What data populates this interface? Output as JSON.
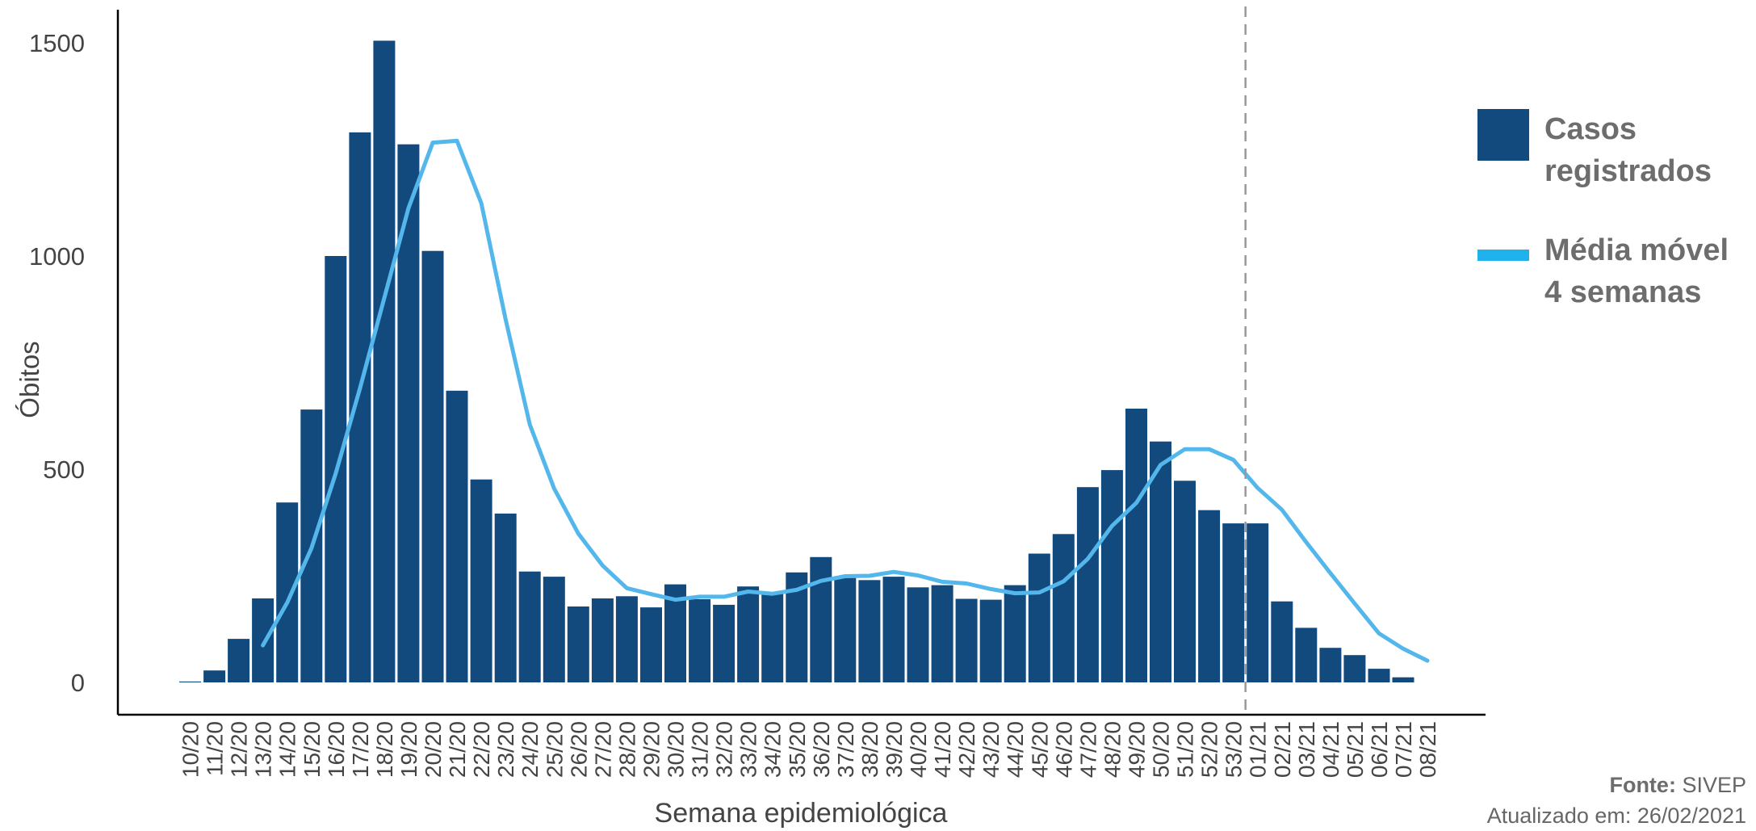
{
  "chart_data": {
    "type": "bar",
    "title": "",
    "xlabel": "Semana epidemiológica",
    "ylabel": "Óbitos",
    "ylim": [
      0,
      1500
    ],
    "yticks": [
      0,
      500,
      1000,
      1500
    ],
    "grid": false,
    "categories": [
      "10/20",
      "11/20",
      "12/20",
      "13/20",
      "14/20",
      "15/20",
      "16/20",
      "17/20",
      "18/20",
      "19/20",
      "20/20",
      "21/20",
      "22/20",
      "23/20",
      "24/20",
      "25/20",
      "26/20",
      "27/20",
      "28/20",
      "29/20",
      "30/20",
      "31/20",
      "32/20",
      "33/20",
      "34/20",
      "35/20",
      "36/20",
      "37/20",
      "38/20",
      "39/20",
      "40/20",
      "41/20",
      "42/20",
      "43/20",
      "44/20",
      "45/20",
      "46/20",
      "47/20",
      "48/20",
      "49/20",
      "50/20",
      "51/20",
      "52/20",
      "53/20",
      "01/21",
      "02/21",
      "03/21",
      "04/21",
      "05/21",
      "06/21",
      "07/21",
      "08/21"
    ],
    "series": [
      {
        "name": "Casos registrados",
        "kind": "bar",
        "values": [
          2,
          28,
          102,
          197,
          422,
          640,
          1000,
          1290,
          1505,
          1262,
          1012,
          684,
          476,
          396,
          260,
          248,
          178,
          197,
          202,
          176,
          230,
          195,
          182,
          225,
          212,
          258,
          294,
          245,
          240,
          248,
          223,
          228,
          196,
          194,
          228,
          302,
          348,
          458,
          498,
          642,
          565,
          473,
          404,
          373,
          373,
          190,
          128,
          81,
          64,
          32,
          12,
          0
        ]
      },
      {
        "name": "Média móvel 4 semanas",
        "kind": "line",
        "values": [
          null,
          null,
          null,
          87,
          187,
          315,
          490,
          690,
          901,
          1112,
          1266,
          1270,
          1124,
          852,
          605,
          455,
          349,
          274,
          221,
          207,
          194,
          201,
          201,
          213,
          208,
          217,
          238,
          249,
          250,
          259,
          251,
          236,
          232,
          219,
          209,
          211,
          237,
          290,
          367,
          421,
          510,
          547,
          547,
          522,
          456,
          405,
          329,
          256,
          185,
          115,
          79,
          51
        ]
      }
    ],
    "reference_line": {
      "category": "53/20",
      "style": "dashed"
    },
    "legend_position": "right"
  },
  "legend": {
    "bar_label": "Casos\nregistrados",
    "line_label": "Média móvel\n4 semanas"
  },
  "footer": {
    "source_label": "Fonte:",
    "source_value": "SIVEP",
    "updated": "Atualizado em: 26/02/2021"
  },
  "colors": {
    "bar": "#134a7d",
    "line": "#53b7ec",
    "axis": "#000000",
    "reference": "#999999"
  }
}
